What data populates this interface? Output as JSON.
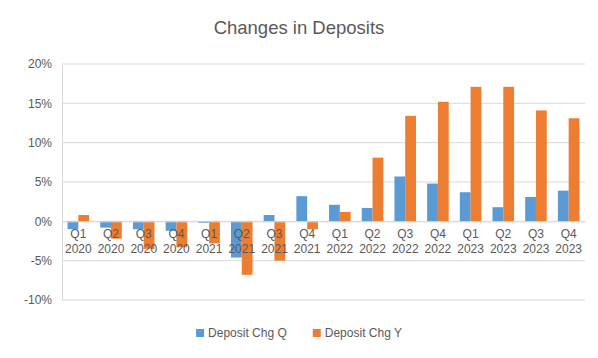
{
  "chart_data": {
    "type": "bar",
    "title": "Changes in Deposits",
    "categories": [
      "Q1 2020",
      "Q2 2020",
      "Q3 2020",
      "Q4 2020",
      "Q1 2021",
      "Q2 2021",
      "Q3 2021",
      "Q4 2021",
      "Q1 2022",
      "Q2 2022",
      "Q3 2022",
      "Q4 2022",
      "Q1 2023",
      "Q2 2023",
      "Q3 2023",
      "Q4 2023"
    ],
    "series": [
      {
        "name": "Deposit Chg Q",
        "color": "#5b9bd5",
        "values": [
          -1.0,
          -0.8,
          -1.0,
          -1.2,
          -0.2,
          -4.6,
          0.8,
          3.2,
          2.1,
          1.7,
          5.7,
          4.8,
          3.7,
          1.8,
          3.1,
          3.9
        ]
      },
      {
        "name": "Deposit Chg Y",
        "color": "#ed7d31",
        "values": [
          0.8,
          -2.2,
          -3.5,
          -3.3,
          -2.8,
          -6.8,
          -5.0,
          -1.0,
          1.2,
          8.1,
          13.4,
          15.2,
          17.1,
          17.1,
          14.1,
          13.1
        ]
      }
    ],
    "ylim": [
      -10,
      20
    ],
    "yticks": [
      {
        "value": -10,
        "label": "-10%"
      },
      {
        "value": -5,
        "label": "-5%"
      },
      {
        "value": 0,
        "label": "0%"
      },
      {
        "value": 5,
        "label": "5%"
      },
      {
        "value": 10,
        "label": "10%"
      },
      {
        "value": 15,
        "label": "15%"
      },
      {
        "value": 20,
        "label": "20%"
      }
    ],
    "grid": true,
    "legend": "bottom"
  }
}
